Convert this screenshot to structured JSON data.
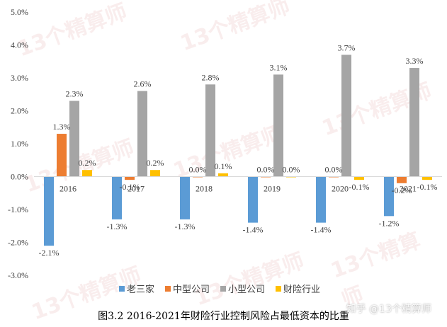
{
  "chart_data": {
    "type": "bar",
    "categories": [
      "2016",
      "2017",
      "2018",
      "2019",
      "2020",
      "2021"
    ],
    "series": [
      {
        "name": "老三家",
        "color": "#5b9bd5",
        "values": [
          -2.1,
          -1.3,
          -1.3,
          -1.4,
          -1.4,
          -1.2
        ],
        "labels": [
          "-2.1%",
          "-1.3%",
          "-1.3%",
          "-1.4%",
          "-1.4%",
          "-1.2%"
        ]
      },
      {
        "name": "中型公司",
        "color": "#ed7d31",
        "values": [
          1.3,
          -0.1,
          0.0,
          0.0,
          0.0,
          -0.2
        ],
        "labels": [
          "1.3%",
          "-0.1%",
          "0.0%",
          "0.0%",
          "0.0%",
          "-0.2%"
        ]
      },
      {
        "name": "小型公司",
        "color": "#a5a5a5",
        "values": [
          2.3,
          2.6,
          2.8,
          3.1,
          3.7,
          3.3
        ],
        "labels": [
          "2.3%",
          "2.6%",
          "2.8%",
          "3.1%",
          "3.7%",
          "3.3%"
        ]
      },
      {
        "name": "财险行业",
        "color": "#ffc000",
        "values": [
          0.2,
          0.2,
          0.1,
          0.0,
          -0.1,
          -0.1
        ],
        "labels": [
          "0.2%",
          "0.2%",
          "0.1%",
          "0.0%",
          "-0.1%",
          "-0.1%"
        ]
      }
    ],
    "ylim": [
      -3.0,
      5.0
    ],
    "yticks": [
      "-3.0%",
      "-2.0%",
      "-1.0%",
      "0.0%",
      "1.0%",
      "2.0%",
      "3.0%",
      "4.0%",
      "5.0%"
    ],
    "ytick_values": [
      -3,
      -2,
      -1,
      0,
      1,
      2,
      3,
      4,
      5
    ],
    "grid": false,
    "legend": "bottom",
    "caption": "图3.2  2016-2021年财险行业控制风险占最低资本的比重"
  },
  "watermark": {
    "text": "13个精算师",
    "zhihu": "知乎 @13个精算师"
  }
}
